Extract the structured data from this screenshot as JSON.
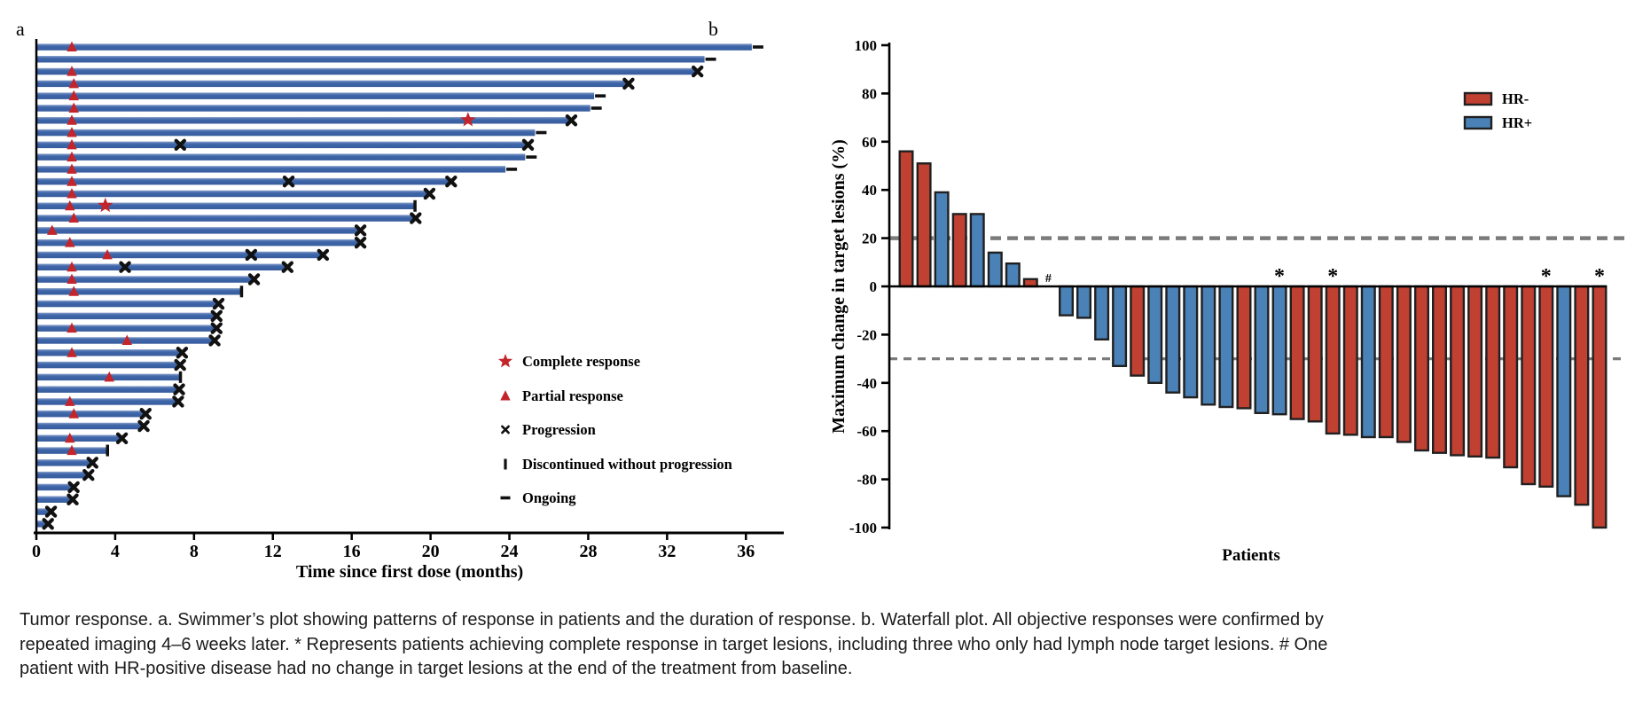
{
  "figure_title": "Tumor response",
  "caption": {
    "text": "Tumor response. a. Swimmer’s plot showing patterns of response in patients and the duration of response. b. Waterfall plot. All objective responses were confirmed by repeated imaging 4–6 weeks later. * Represents patients achieving complete response in target lesions, including three who only had lymph node target lesions. # One patient with HR-positive disease had no change in target lesions at the end of the treatment from baseline."
  },
  "colors": {
    "swimmer_bar_blue": "#3b64a6",
    "swimmer_bar_blue_light": "#93a9d0",
    "response_red": "#c3252b",
    "marker_black": "#111111",
    "waterfall_red_hr_neg": "#c04031",
    "waterfall_blue_hr_pos": "#4a81b7",
    "bar_stroke": "#202020",
    "ref_line_gray": "#7b7b7b",
    "axis_black": "#000000"
  },
  "chart_data": [
    {
      "type": "bar",
      "variant": "swimmer",
      "panel_label": "a",
      "xlabel": "Time since first dose (months)",
      "xlim": [
        0,
        38
      ],
      "xticks": [
        0,
        4,
        8,
        12,
        16,
        20,
        24,
        28,
        32,
        36
      ],
      "grid": false,
      "legend_position": "inside-bottom-right",
      "legend": [
        {
          "marker": "star",
          "label": "Complete response"
        },
        {
          "marker": "triangle",
          "label": "Partial response"
        },
        {
          "marker": "x",
          "label": "Progression"
        },
        {
          "marker": "bar",
          "label": "Discontinued without progression"
        },
        {
          "marker": "dash",
          "label": "Ongoing"
        }
      ],
      "marker_meaning": {
        "pr": "partial response (months)",
        "cr": "complete response (months)",
        "x": "progression event (months)",
        "end": "end-of-bar marker type"
      },
      "patients": [
        {
          "duration": 36.3,
          "end": "ongoing",
          "pr": [
            1.8
          ]
        },
        {
          "duration": 33.9,
          "end": "ongoing"
        },
        {
          "duration": 33.5,
          "end": "progression",
          "pr": [
            1.8
          ]
        },
        {
          "duration": 30.0,
          "end": "progression",
          "pr": [
            1.9
          ]
        },
        {
          "duration": 28.3,
          "end": "ongoing",
          "pr": [
            1.9
          ]
        },
        {
          "duration": 28.1,
          "end": "ongoing",
          "pr": [
            1.9
          ]
        },
        {
          "duration": 27.1,
          "end": "progression",
          "pr": [
            1.8
          ],
          "cr": [
            21.9
          ]
        },
        {
          "duration": 25.3,
          "end": "ongoing",
          "pr": [
            1.8
          ]
        },
        {
          "duration": 24.9,
          "end": "progression",
          "pr": [
            1.8
          ],
          "x": [
            7.3
          ]
        },
        {
          "duration": 24.8,
          "end": "ongoing",
          "pr": [
            1.8
          ]
        },
        {
          "duration": 23.8,
          "end": "ongoing",
          "pr": [
            1.8
          ]
        },
        {
          "duration": 21.0,
          "end": "progression",
          "pr": [
            1.8
          ],
          "x": [
            12.8
          ]
        },
        {
          "duration": 19.9,
          "end": "progression",
          "pr": [
            1.8
          ]
        },
        {
          "duration": 19.2,
          "end": "discontinued",
          "pr": [
            1.7
          ],
          "cr": [
            3.5
          ]
        },
        {
          "duration": 19.2,
          "end": "progression",
          "pr": [
            1.9
          ]
        },
        {
          "duration": 16.4,
          "end": "progression",
          "pr": [
            0.8
          ]
        },
        {
          "duration": 16.4,
          "end": "progression",
          "pr": [
            1.7
          ]
        },
        {
          "duration": 14.5,
          "end": "progression",
          "pr": [
            3.6
          ],
          "x": [
            10.9
          ]
        },
        {
          "duration": 12.7,
          "end": "progression",
          "pr": [
            1.8
          ],
          "x": [
            4.5
          ]
        },
        {
          "duration": 11.0,
          "end": "progression",
          "pr": [
            1.8
          ]
        },
        {
          "duration": 10.4,
          "end": "discontinued",
          "pr": [
            1.9
          ]
        },
        {
          "duration": 9.2,
          "end": "progression"
        },
        {
          "duration": 9.1,
          "end": "progression"
        },
        {
          "duration": 9.1,
          "end": "progression",
          "pr": [
            1.8
          ]
        },
        {
          "duration": 9.0,
          "end": "progression",
          "pr": [
            4.6
          ]
        },
        {
          "duration": 7.35,
          "end": "progression",
          "pr": [
            1.8
          ]
        },
        {
          "duration": 7.25,
          "end": "progression"
        },
        {
          "duration": 7.3,
          "end": "discontinued",
          "pr": [
            3.7
          ]
        },
        {
          "duration": 7.2,
          "end": "progression"
        },
        {
          "duration": 7.15,
          "end": "progression",
          "pr": [
            1.7
          ]
        },
        {
          "duration": 5.5,
          "end": "progression",
          "pr": [
            1.9
          ]
        },
        {
          "duration": 5.4,
          "end": "progression"
        },
        {
          "duration": 4.3,
          "end": "progression",
          "pr": [
            1.7
          ]
        },
        {
          "duration": 3.6,
          "end": "discontinued",
          "pr": [
            1.8
          ]
        },
        {
          "duration": 2.8,
          "end": "progression"
        },
        {
          "duration": 2.6,
          "end": "progression"
        },
        {
          "duration": 1.85,
          "end": "progression"
        },
        {
          "duration": 1.8,
          "end": "progression"
        },
        {
          "duration": 0.7,
          "end": "progression"
        },
        {
          "duration": 0.55,
          "end": "progression"
        }
      ]
    },
    {
      "type": "bar",
      "variant": "waterfall",
      "panel_label": "b",
      "ylabel": "Maximum change in target lesions (%)",
      "xlabel": "Patients",
      "ylim": [
        -100,
        100
      ],
      "yticks": [
        100,
        80,
        60,
        40,
        20,
        0,
        -20,
        -40,
        -60,
        -80,
        -100
      ],
      "reference_lines": [
        20,
        -30
      ],
      "grid": false,
      "legend_position": "top-right",
      "legend": [
        {
          "label": "HR-",
          "group": "HR-"
        },
        {
          "label": "HR+",
          "group": "HR+"
        }
      ],
      "annotation_meaning": {
        "*": "complete response in target lesions",
        "#": "no change in target lesions"
      },
      "bars": [
        {
          "value": 56,
          "group": "HR-"
        },
        {
          "value": 51,
          "group": "HR-"
        },
        {
          "value": 39,
          "group": "HR+"
        },
        {
          "value": 30,
          "group": "HR-"
        },
        {
          "value": 30,
          "group": "HR+"
        },
        {
          "value": 14,
          "group": "HR+"
        },
        {
          "value": 9.5,
          "group": "HR+"
        },
        {
          "value": 3,
          "group": "HR-"
        },
        {
          "value": 0,
          "group": "HR+",
          "annotation": "#"
        },
        {
          "value": -12,
          "group": "HR+"
        },
        {
          "value": -13,
          "group": "HR+"
        },
        {
          "value": -22,
          "group": "HR+"
        },
        {
          "value": -33,
          "group": "HR+"
        },
        {
          "value": -37,
          "group": "HR-"
        },
        {
          "value": -40,
          "group": "HR+"
        },
        {
          "value": -44,
          "group": "HR+"
        },
        {
          "value": -46,
          "group": "HR+"
        },
        {
          "value": -49,
          "group": "HR+"
        },
        {
          "value": -50,
          "group": "HR+"
        },
        {
          "value": -50.5,
          "group": "HR-"
        },
        {
          "value": -52.5,
          "group": "HR+"
        },
        {
          "value": -53,
          "group": "HR+",
          "annotation": "*"
        },
        {
          "value": -55,
          "group": "HR-"
        },
        {
          "value": -56,
          "group": "HR-"
        },
        {
          "value": -61,
          "group": "HR-",
          "annotation": "*"
        },
        {
          "value": -61.5,
          "group": "HR-"
        },
        {
          "value": -62.5,
          "group": "HR+"
        },
        {
          "value": -62.5,
          "group": "HR-"
        },
        {
          "value": -64.5,
          "group": "HR-"
        },
        {
          "value": -68,
          "group": "HR-"
        },
        {
          "value": -69,
          "group": "HR-"
        },
        {
          "value": -70,
          "group": "HR-"
        },
        {
          "value": -70.5,
          "group": "HR-"
        },
        {
          "value": -71,
          "group": "HR-"
        },
        {
          "value": -75,
          "group": "HR-"
        },
        {
          "value": -82,
          "group": "HR-"
        },
        {
          "value": -83,
          "group": "HR-",
          "annotation": "*"
        },
        {
          "value": -87,
          "group": "HR+"
        },
        {
          "value": -90.5,
          "group": "HR-"
        },
        {
          "value": -100,
          "group": "HR-",
          "annotation": "*"
        }
      ]
    }
  ]
}
